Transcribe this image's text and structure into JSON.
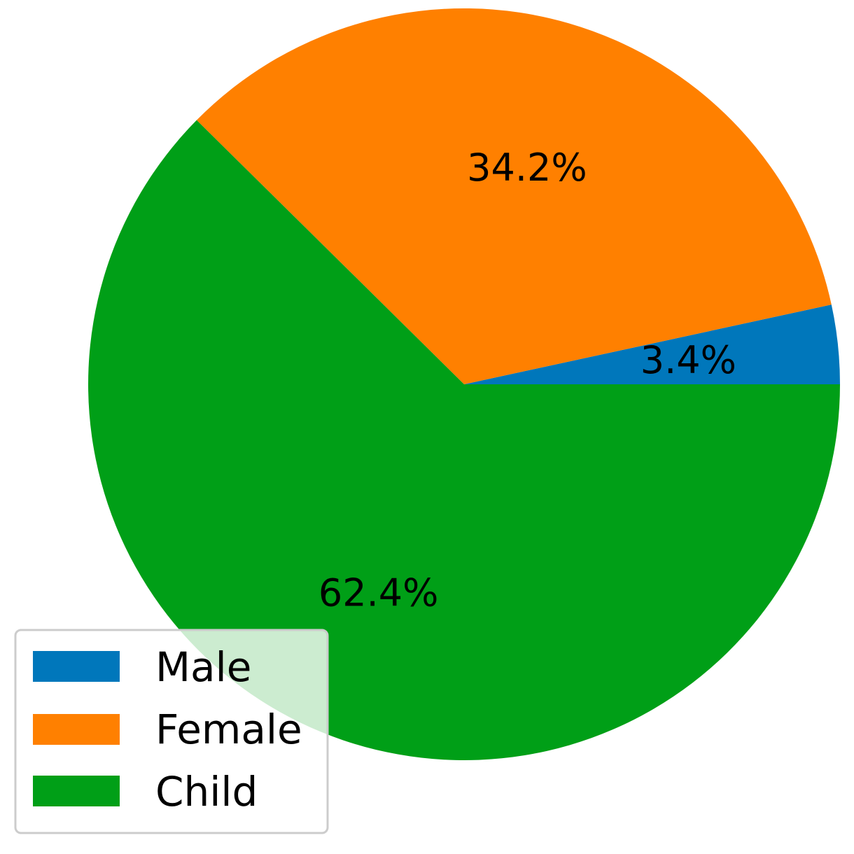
{
  "chart_data": {
    "type": "pie",
    "categories": [
      "Male",
      "Female",
      "Child"
    ],
    "values": [
      3.4,
      34.2,
      62.4
    ],
    "labels": [
      "3.4%",
      "34.2%",
      "62.4%"
    ],
    "colors": [
      "#0077bb",
      "#ff8000",
      "#009f17"
    ],
    "start_angle_deg": 0,
    "direction": "counterclockwise",
    "legend": {
      "placement": "lower-left",
      "entries": [
        "Male",
        "Female",
        "Child"
      ]
    }
  }
}
